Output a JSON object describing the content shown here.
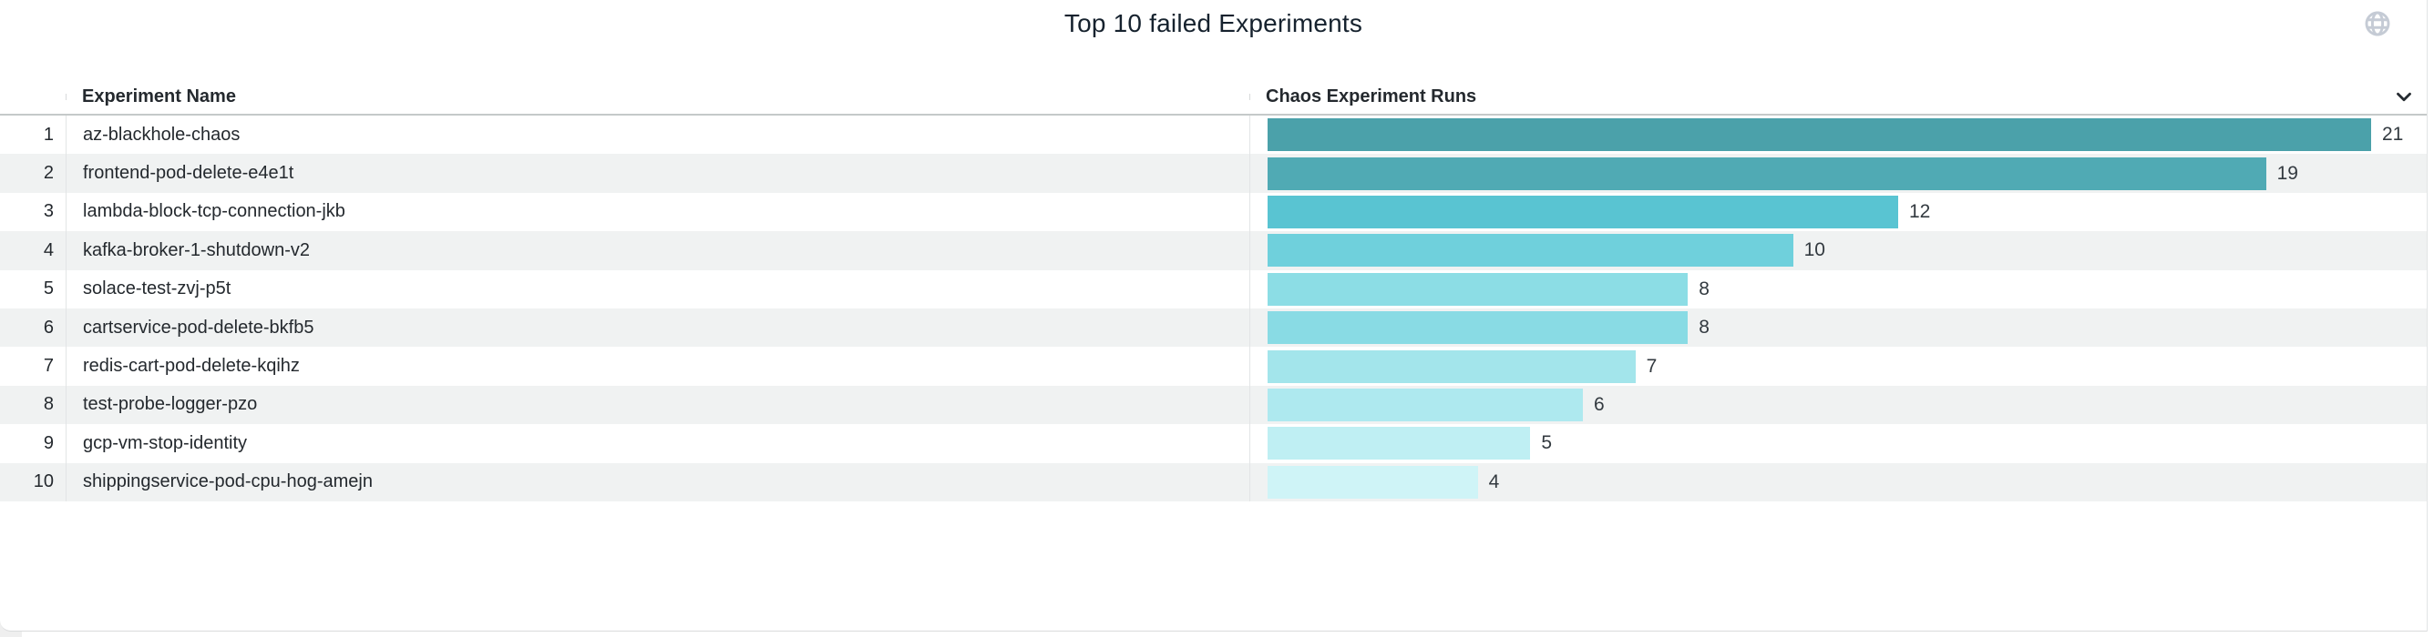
{
  "widget": {
    "title": "Top 10 failed Experiments"
  },
  "table": {
    "columns": {
      "name_header": "Experiment Name",
      "runs_header": "Chaos Experiment Runs"
    },
    "rows": [
      {
        "rank": "1",
        "name": "az-blackhole-chaos",
        "runs": 21,
        "color": "#4BA1AA"
      },
      {
        "rank": "2",
        "name": "frontend-pod-delete-e4e1t",
        "runs": 19,
        "color": "#50AAB4"
      },
      {
        "rank": "3",
        "name": "lambda-block-tcp-connection-jkb",
        "runs": 12,
        "color": "#59C4D2"
      },
      {
        "rank": "4",
        "name": "kafka-broker-1-shutdown-v2",
        "runs": 10,
        "color": "#6FD0DC"
      },
      {
        "rank": "5",
        "name": "solace-test-zvj-p5t",
        "runs": 8,
        "color": "#8CDDE5"
      },
      {
        "rank": "6",
        "name": "cartservice-pod-delete-bkfb5",
        "runs": 8,
        "color": "#89DBE4"
      },
      {
        "rank": "7",
        "name": "redis-cart-pod-delete-kqihz",
        "runs": 7,
        "color": "#A3E5EB"
      },
      {
        "rank": "8",
        "name": "test-probe-logger-pzo",
        "runs": 6,
        "color": "#AEE9EF"
      },
      {
        "rank": "9",
        "name": "gcp-vm-stop-identity",
        "runs": 5,
        "color": "#BFEFF3"
      },
      {
        "rank": "10",
        "name": "shippingservice-pod-cpu-hog-amejn",
        "runs": 4,
        "color": "#CFF4F7"
      }
    ]
  },
  "chart_data": {
    "type": "bar",
    "orientation": "horizontal",
    "title": "Top 10 failed Experiments",
    "categories": [
      "az-blackhole-chaos",
      "frontend-pod-delete-e4e1t",
      "lambda-block-tcp-connection-jkb",
      "kafka-broker-1-shutdown-v2",
      "solace-test-zvj-p5t",
      "cartservice-pod-delete-bkfb5",
      "redis-cart-pod-delete-kqihz",
      "test-probe-logger-pzo",
      "gcp-vm-stop-identity",
      "shippingservice-pod-cpu-hog-amejn"
    ],
    "values": [
      21,
      19,
      12,
      10,
      8,
      8,
      7,
      6,
      5,
      4
    ],
    "value_axis_label": "Chaos Experiment Runs",
    "category_axis_label": "Experiment Name",
    "xlim": [
      0,
      22
    ],
    "data_labels": true,
    "grid": false,
    "legend": false,
    "bar_colors": [
      "#4BA1AA",
      "#50AAB4",
      "#59C4D2",
      "#6FD0DC",
      "#8CDDE5",
      "#89DBE4",
      "#A3E5EB",
      "#AEE9EF",
      "#BFEFF3",
      "#CFF4F7"
    ]
  },
  "icons": {
    "globe": "globe-icon",
    "sort_chevron": "chevron-down-icon"
  },
  "colors": {
    "title_text": "#16222E",
    "body_text": "#24292E",
    "value_text": "#333A40",
    "row_stripe": "#F0F2F2",
    "header_border": "#C5C9C9",
    "column_divider": "#E3E5E6",
    "globe_icon": "#C5CBD5",
    "bar_scale_start": "#4BA1AA",
    "bar_scale_end": "#CFF4F7"
  }
}
